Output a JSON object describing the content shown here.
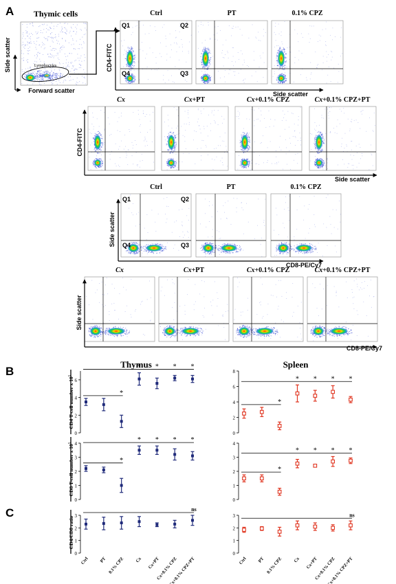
{
  "panels": {
    "A": "A",
    "B": "B",
    "C": "C"
  },
  "thymic": {
    "title": "Thymic cells",
    "ylabel": "Side scatter",
    "xlabel": "Forward scatter",
    "gate": "Lymphocytes"
  },
  "row1": {
    "titles": [
      "Ctrl",
      "PT",
      "0.1% CPZ"
    ],
    "ylabel": "CD4-FITC",
    "xlabel": "Side scatter",
    "quads": [
      "Q1",
      "Q2",
      "Q4",
      "Q3"
    ]
  },
  "row2": {
    "titles_cx": [
      "Cx",
      "Cx",
      "Cx",
      "Cx"
    ],
    "titles_rest": [
      "",
      "+PT",
      "+0.1% CPZ",
      "+0.1% CPZ+PT"
    ],
    "ylabel": "CD4-FITC",
    "xlabel": "Side scatter"
  },
  "row3": {
    "titles": [
      "Ctrl",
      "PT",
      "0.1% CPZ"
    ],
    "ylabel": "Side scatter",
    "xlabel": "CD8-PE/Cy7",
    "quads": [
      "Q1",
      "Q2",
      "Q4",
      "Q3"
    ]
  },
  "row4": {
    "titles_cx": [
      "Cx",
      "Cx",
      "Cx",
      "Cx"
    ],
    "titles_rest": [
      "",
      "+PT",
      "+0.1% CPZ",
      "+0.1% CPZ+PT"
    ],
    "ylabel": "Side scatter",
    "xlabel": "CD8-PE/Cy7"
  },
  "colors": {
    "thymus": "#1f2a7a",
    "spleen": "#e0341f",
    "dots": "#4a5bd8"
  },
  "chart_data": [
    {
      "type": "scatter",
      "title": "Thymus",
      "ylabel": "CD4 T-cell number x 10",
      "ylabel_exp": "5",
      "ylim": [
        0,
        7
      ],
      "yticks": [
        "0",
        "2",
        "4",
        "6"
      ],
      "x": [
        "Ctrl",
        "PT",
        "0.1% CPZ",
        "Cx",
        "Cx+PT",
        "Cx+0.1% CPZ",
        "Cx+0.1% CPZ+PT"
      ],
      "mean": [
        3.5,
        3.2,
        1.3,
        6.1,
        5.6,
        6.2,
        6.1
      ],
      "err": [
        0.4,
        0.7,
        0.7,
        0.7,
        0.6,
        0.3,
        0.4
      ],
      "sig": [
        "",
        "",
        "*",
        "*",
        "*",
        "*",
        "*"
      ]
    },
    {
      "type": "scatter",
      "title": "Spleen",
      "ylabel": "",
      "ylim": [
        0,
        8
      ],
      "yticks": [
        "0",
        "2",
        "4",
        "6",
        "8"
      ],
      "x": [
        "Ctrl",
        "PT",
        "0.1% CPZ",
        "Cx",
        "Cx+PT",
        "Cx+0.1% CPZ",
        "Cx+0.1% CPZ+PT"
      ],
      "mean": [
        2.5,
        2.7,
        0.9,
        5.1,
        4.8,
        5.3,
        4.3
      ],
      "err": [
        0.6,
        0.6,
        0.5,
        1.1,
        0.7,
        0.8,
        0.4
      ],
      "sig": [
        "",
        "",
        "*",
        "*",
        "*",
        "*",
        "*"
      ]
    },
    {
      "type": "scatter",
      "title": "",
      "ylabel": "CD8 T-cell number x 10",
      "ylabel_exp": "5",
      "ylim": [
        0,
        4
      ],
      "yticks": [
        "0",
        "1",
        "2",
        "3",
        "4"
      ],
      "x": [
        "Ctrl",
        "PT",
        "0.1% CPZ",
        "Cx",
        "Cx+PT",
        "Cx+0.1% CPZ",
        "Cx+0.1% CPZ+PT"
      ],
      "mean": [
        2.2,
        2.1,
        1.0,
        3.5,
        3.5,
        3.2,
        3.1
      ],
      "err": [
        0.2,
        0.2,
        0.5,
        0.3,
        0.3,
        0.4,
        0.3
      ],
      "sig": [
        "",
        "",
        "*",
        "*",
        "*",
        "*",
        "*"
      ]
    },
    {
      "type": "scatter",
      "title": "",
      "ylabel": "",
      "ylim": [
        0,
        4
      ],
      "yticks": [
        "0",
        "1",
        "2",
        "3",
        "4"
      ],
      "x": [
        "Ctrl",
        "PT",
        "0.1% CPZ",
        "Cx",
        "Cx+PT",
        "Cx+0.1% CPZ",
        "Cx+0.1% CPZ+PT"
      ],
      "mean": [
        1.5,
        1.5,
        0.55,
        2.55,
        2.4,
        2.7,
        2.75
      ],
      "err": [
        0.25,
        0.25,
        0.25,
        0.3,
        0.1,
        0.35,
        0.2
      ],
      "sig": [
        "",
        "",
        "*",
        "*",
        "*",
        "*",
        "*"
      ]
    },
    {
      "type": "scatter",
      "title": "",
      "ylabel": "CD4/CD8 ratio",
      "ylim": [
        0,
        3
      ],
      "yticks": [
        "0",
        "1",
        "2",
        "3"
      ],
      "x": [
        "Ctrl",
        "PT",
        "0.1% CPZ",
        "Cx",
        "Cx+PT",
        "Cx+0.1% CPZ",
        "Cx+0.1% CPZ+PT"
      ],
      "mean": [
        2.3,
        2.35,
        2.4,
        2.5,
        2.25,
        2.3,
        2.6
      ],
      "err": [
        0.4,
        0.5,
        0.5,
        0.4,
        0.15,
        0.3,
        0.4
      ],
      "ns": "ns"
    },
    {
      "type": "scatter",
      "title": "",
      "ylabel": "",
      "ylim": [
        0,
        3
      ],
      "yticks": [
        "0",
        "1",
        "2",
        "3"
      ],
      "x": [
        "Ctrl",
        "PT",
        "0.1% CPZ",
        "Cx",
        "Cx+PT",
        "Cx+0.1% CPZ",
        "Cx+0.1% CPZ+PT"
      ],
      "mean": [
        1.85,
        1.95,
        1.7,
        2.2,
        2.1,
        2.0,
        2.2
      ],
      "err": [
        0.2,
        0.15,
        0.35,
        0.35,
        0.3,
        0.25,
        0.35
      ],
      "ns": "ns"
    }
  ],
  "xaxis": {
    "labels": [
      "Ctrl",
      "PT",
      "0.1% CPZ",
      "Cx",
      "Cx+PT",
      "Cx+0.1% CPZ",
      "Cx+0.1% CPZ+PT"
    ]
  }
}
